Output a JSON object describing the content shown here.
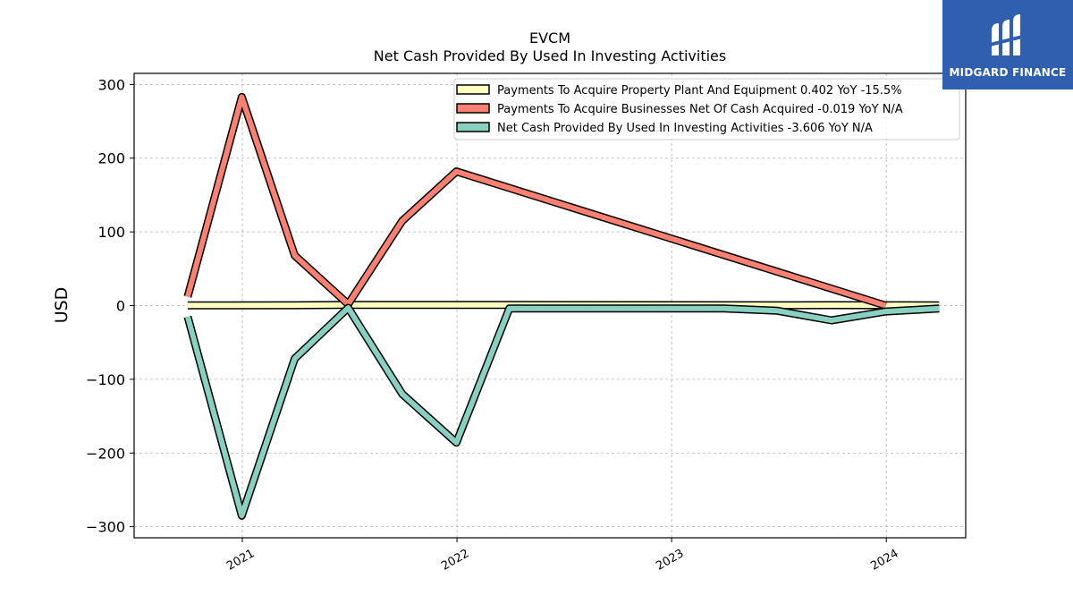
{
  "logo": {
    "text": "MIDGARD FINANCE",
    "background": "#2f5fae"
  },
  "chart_data": {
    "type": "line",
    "title": "EVCM",
    "subtitle": "Net Cash Provided By Used In Investing Activities",
    "xlabel": "",
    "ylabel": "USD",
    "xlim": [
      "2020-07-01",
      "2024-05-15"
    ],
    "ylim": [
      -315,
      315
    ],
    "yticks": [
      300,
      200,
      100,
      0,
      -100,
      -200,
      -300
    ],
    "ytick_labels": [
      "300",
      "200",
      "100",
      "0",
      "−100",
      "−200",
      "−300"
    ],
    "xticks": [
      "2021-01-01",
      "2022-01-01",
      "2023-01-01",
      "2024-01-01"
    ],
    "xtick_labels": [
      "2021",
      "2022",
      "2023",
      "2024"
    ],
    "grid": true,
    "legend_position": "top-right",
    "series": [
      {
        "name": "Payments To Acquire Property Plant And Equipment  0.402 YoY -15.5%",
        "color": "#ffffc0",
        "x": [
          "2020-09-30",
          "2021-03-31",
          "2021-06-30",
          "2021-09-30",
          "2021-12-31",
          "2022-03-31",
          "2023-06-30",
          "2023-09-30",
          "2023-12-31",
          "2024-03-31"
        ],
        "y": [
          0.3,
          0.5,
          1.0,
          0.8,
          1.0,
          0.9,
          0.5,
          0.6,
          0.5,
          0.4
        ]
      },
      {
        "name": "Payments To Acquire Businesses Net Of Cash Acquired  -0.019 YoY N/A",
        "color": "#fa8072",
        "x": [
          "2020-09-30",
          "2020-12-31",
          "2021-03-31",
          "2021-06-30",
          "2021-09-30",
          "2021-12-31",
          "2023-12-31"
        ],
        "y": [
          12,
          283,
          68,
          2,
          115,
          182,
          0
        ]
      },
      {
        "name": "Net Cash Provided By Used In Investing Activities  -3.606 YoY N/A",
        "color": "#88d0c0",
        "x": [
          "2020-09-30",
          "2020-12-31",
          "2021-03-31",
          "2021-06-30",
          "2021-09-30",
          "2021-12-31",
          "2022-03-31",
          "2023-03-31",
          "2023-06-30",
          "2023-09-30",
          "2023-12-31",
          "2024-03-31"
        ],
        "y": [
          -15,
          -285,
          -72,
          -3,
          -120,
          -186,
          -4,
          -4,
          -7,
          -20,
          -8,
          -4
        ]
      }
    ]
  }
}
